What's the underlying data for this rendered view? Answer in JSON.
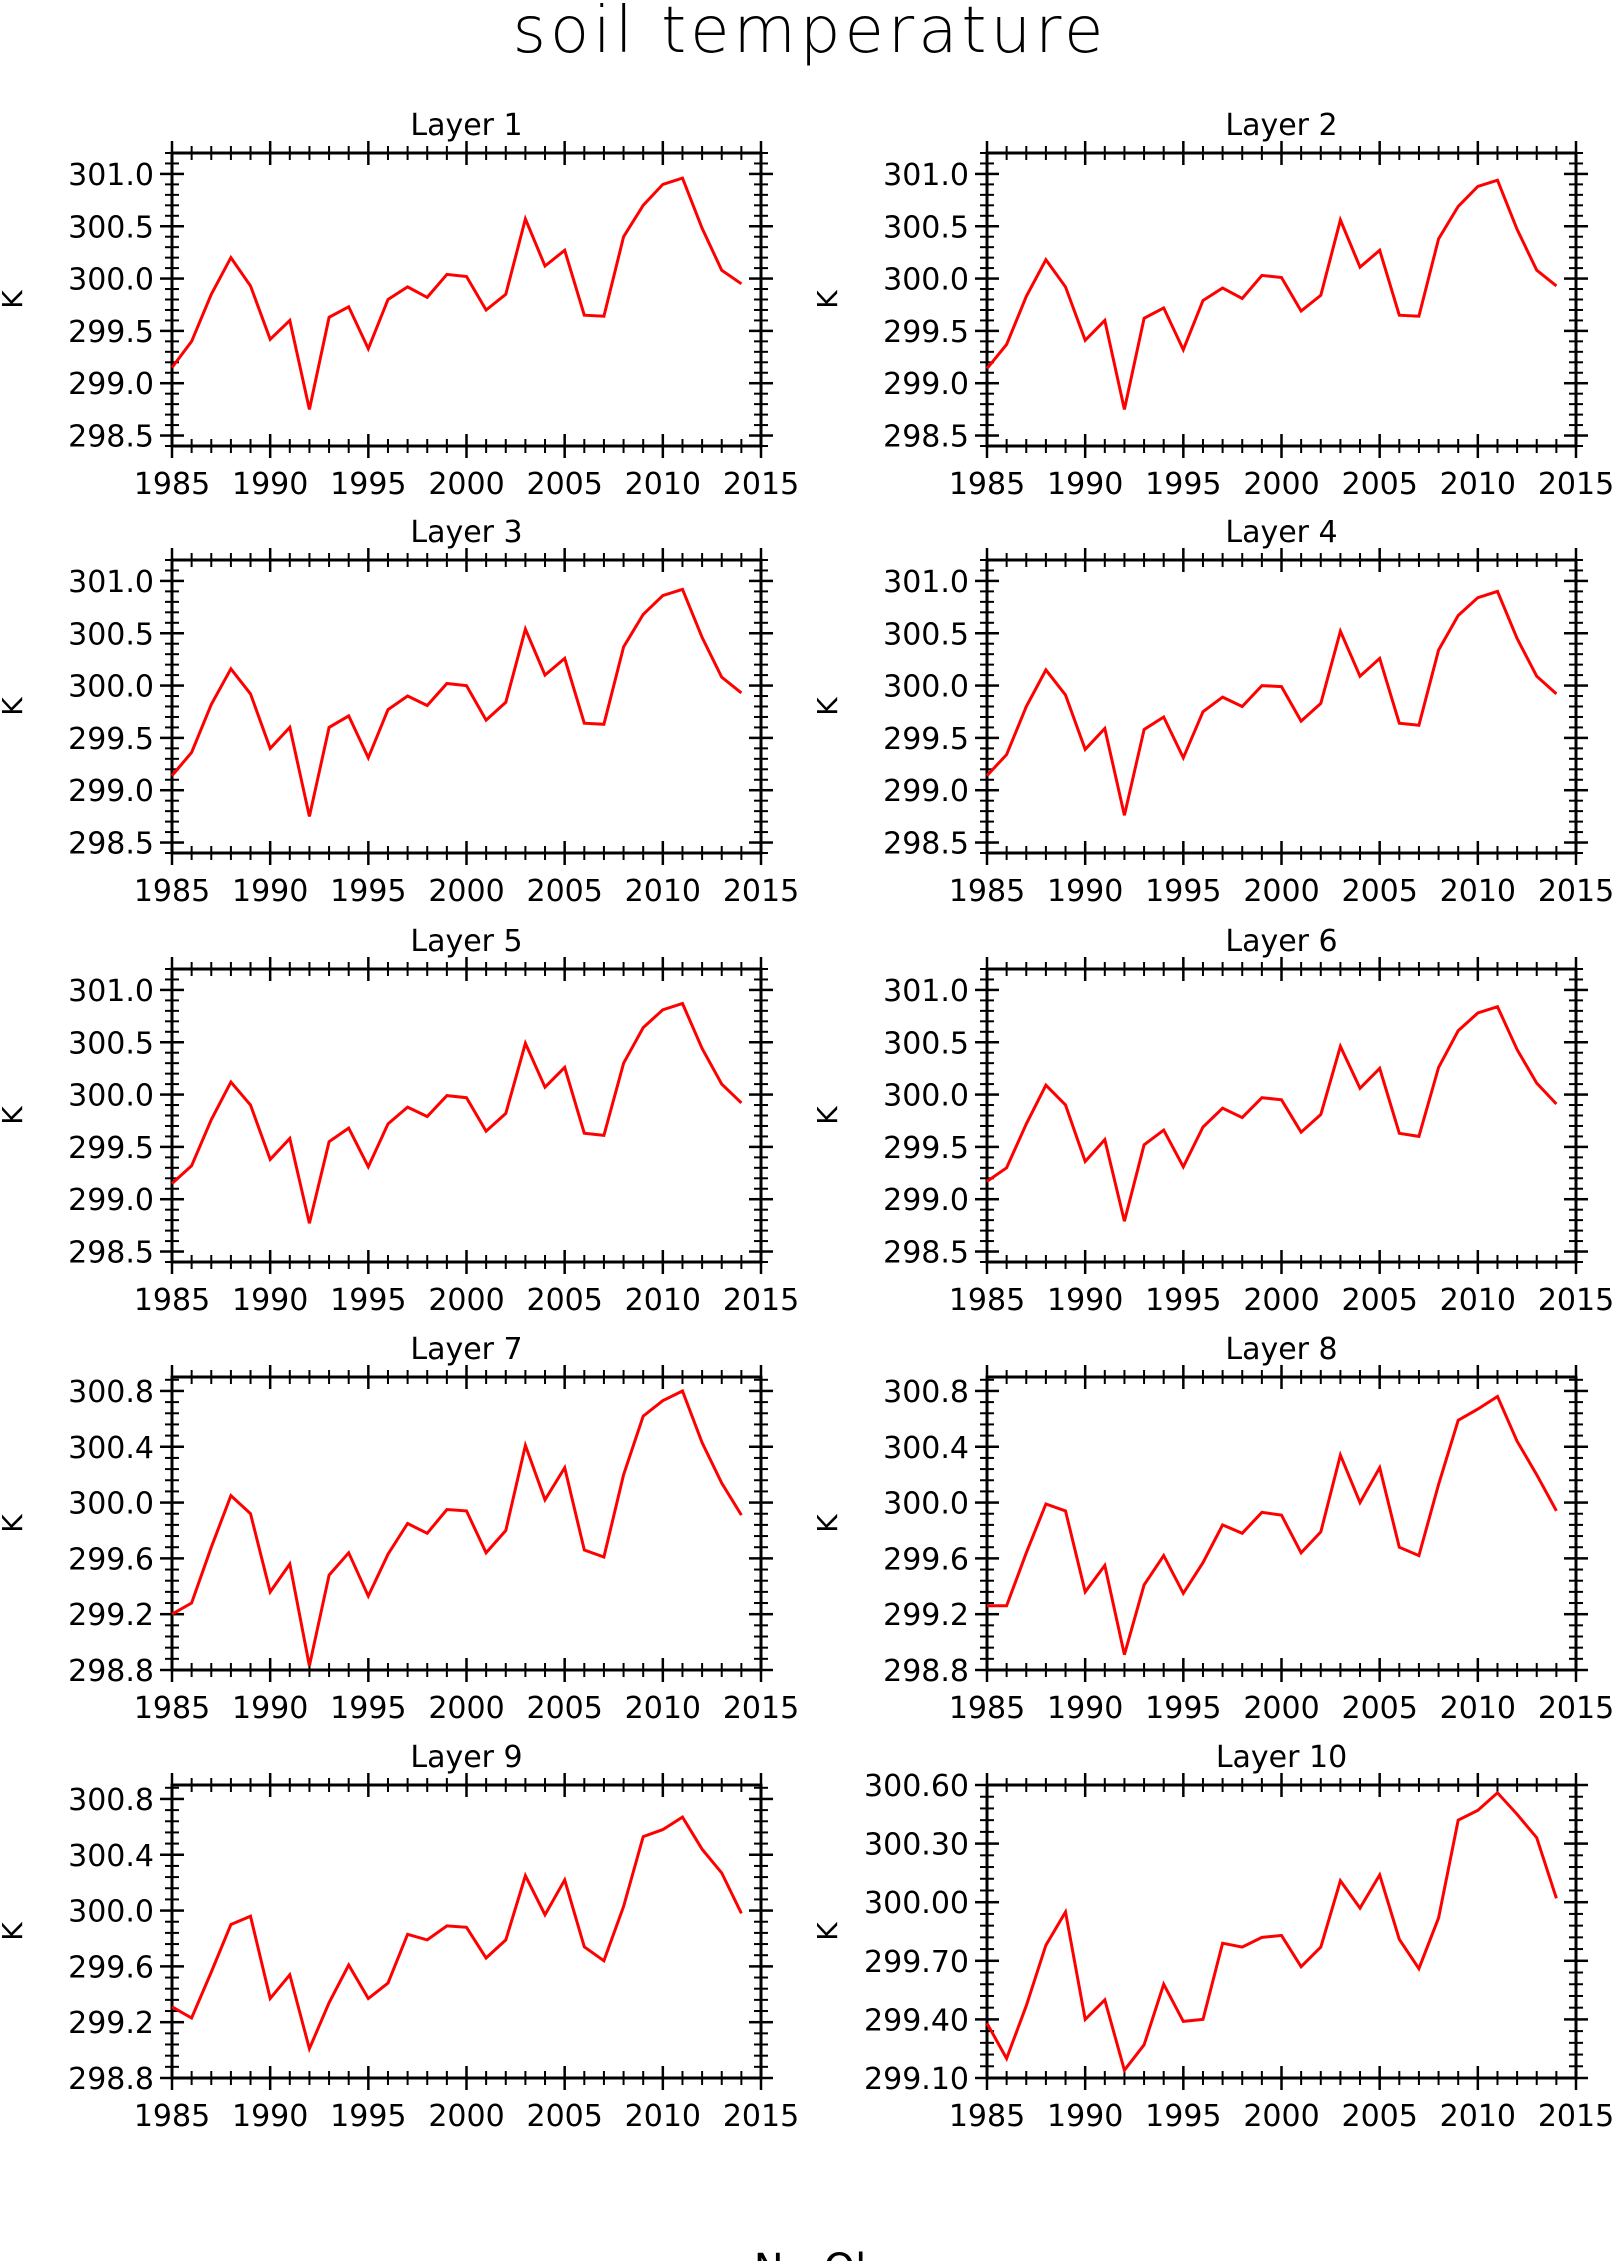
{
  "title": "soil temperature",
  "footer": "N - Ol",
  "colors": {
    "series": "#ff0000",
    "axes": "#000000"
  },
  "chart_data": [
    {
      "type": "line",
      "title": "Layer 1",
      "ylabel": "K",
      "xlim": [
        1985,
        2015
      ],
      "ylim": [
        298.4,
        301.2
      ],
      "x_ticks": [
        "1985",
        "1990",
        "1995",
        "2000",
        "2005",
        "2010",
        "2015"
      ],
      "y_ticks": [
        "298.5",
        "299.0",
        "299.5",
        "300.0",
        "300.5",
        "301.0"
      ],
      "x": [
        1985,
        1986,
        1987,
        1988,
        1989,
        1990,
        1991,
        1992,
        1993,
        1994,
        1995,
        1996,
        1997,
        1998,
        1999,
        2000,
        2001,
        2002,
        2003,
        2004,
        2005,
        2006,
        2007,
        2008,
        2009,
        2010,
        2011,
        2012,
        2013,
        2014
      ],
      "values": [
        299.15,
        299.4,
        299.85,
        300.2,
        299.93,
        299.42,
        299.6,
        298.75,
        299.63,
        299.73,
        299.33,
        299.8,
        299.92,
        299.82,
        300.04,
        300.02,
        299.7,
        299.85,
        300.57,
        300.12,
        300.27,
        299.65,
        299.64,
        300.4,
        300.7,
        300.9,
        300.96,
        300.48,
        300.08,
        299.95
      ]
    },
    {
      "type": "line",
      "title": "Layer 2",
      "ylabel": "K",
      "xlim": [
        1985,
        2015
      ],
      "ylim": [
        298.4,
        301.2
      ],
      "x_ticks": [
        "1985",
        "1990",
        "1995",
        "2000",
        "2005",
        "2010",
        "2015"
      ],
      "y_ticks": [
        "298.5",
        "299.0",
        "299.5",
        "300.0",
        "300.5",
        "301.0"
      ],
      "x": [
        1985,
        1986,
        1987,
        1988,
        1989,
        1990,
        1991,
        1992,
        1993,
        1994,
        1995,
        1996,
        1997,
        1998,
        1999,
        2000,
        2001,
        2002,
        2003,
        2004,
        2005,
        2006,
        2007,
        2008,
        2009,
        2010,
        2011,
        2012,
        2013,
        2014
      ],
      "values": [
        299.14,
        299.37,
        299.83,
        300.18,
        299.92,
        299.41,
        299.6,
        298.75,
        299.62,
        299.72,
        299.32,
        299.79,
        299.91,
        299.81,
        300.03,
        300.01,
        299.69,
        299.84,
        300.56,
        300.11,
        300.27,
        299.65,
        299.64,
        300.38,
        300.69,
        300.88,
        300.94,
        300.47,
        300.08,
        299.93
      ]
    },
    {
      "type": "line",
      "title": "Layer 3",
      "ylabel": "K",
      "xlim": [
        1985,
        2015
      ],
      "ylim": [
        298.4,
        301.2
      ],
      "x_ticks": [
        "1985",
        "1990",
        "1995",
        "2000",
        "2005",
        "2010",
        "2015"
      ],
      "y_ticks": [
        "298.5",
        "299.0",
        "299.5",
        "300.0",
        "300.5",
        "301.0"
      ],
      "x": [
        1985,
        1986,
        1987,
        1988,
        1989,
        1990,
        1991,
        1992,
        1993,
        1994,
        1995,
        1996,
        1997,
        1998,
        1999,
        2000,
        2001,
        2002,
        2003,
        2004,
        2005,
        2006,
        2007,
        2008,
        2009,
        2010,
        2011,
        2012,
        2013,
        2014
      ],
      "values": [
        299.14,
        299.36,
        299.82,
        300.16,
        299.92,
        299.4,
        299.6,
        298.75,
        299.6,
        299.71,
        299.31,
        299.77,
        299.9,
        299.81,
        300.02,
        300.0,
        299.67,
        299.84,
        300.54,
        300.1,
        300.26,
        299.64,
        299.63,
        300.37,
        300.68,
        300.86,
        300.92,
        300.46,
        300.08,
        299.93
      ]
    },
    {
      "type": "line",
      "title": "Layer 4",
      "ylabel": "K",
      "xlim": [
        1985,
        2015
      ],
      "ylim": [
        298.4,
        301.2
      ],
      "x_ticks": [
        "1985",
        "1990",
        "1995",
        "2000",
        "2005",
        "2010",
        "2015"
      ],
      "y_ticks": [
        "298.5",
        "299.0",
        "299.5",
        "300.0",
        "300.5",
        "301.0"
      ],
      "x": [
        1985,
        1986,
        1987,
        1988,
        1989,
        1990,
        1991,
        1992,
        1993,
        1994,
        1995,
        1996,
        1997,
        1998,
        1999,
        2000,
        2001,
        2002,
        2003,
        2004,
        2005,
        2006,
        2007,
        2008,
        2009,
        2010,
        2011,
        2012,
        2013,
        2014
      ],
      "values": [
        299.14,
        299.34,
        299.8,
        300.15,
        299.91,
        299.39,
        299.59,
        298.76,
        299.58,
        299.7,
        299.31,
        299.75,
        299.89,
        299.8,
        300.0,
        299.99,
        299.66,
        299.83,
        300.52,
        300.09,
        300.26,
        299.64,
        299.62,
        300.34,
        300.67,
        300.84,
        300.9,
        300.45,
        300.09,
        299.92
      ]
    },
    {
      "type": "line",
      "title": "Layer 5",
      "ylabel": "K",
      "xlim": [
        1985,
        2015
      ],
      "ylim": [
        298.4,
        301.2
      ],
      "x_ticks": [
        "1985",
        "1990",
        "1995",
        "2000",
        "2005",
        "2010",
        "2015"
      ],
      "y_ticks": [
        "298.5",
        "299.0",
        "299.5",
        "300.0",
        "300.5",
        "301.0"
      ],
      "x": [
        1985,
        1986,
        1987,
        1988,
        1989,
        1990,
        1991,
        1992,
        1993,
        1994,
        1995,
        1996,
        1997,
        1998,
        1999,
        2000,
        2001,
        2002,
        2003,
        2004,
        2005,
        2006,
        2007,
        2008,
        2009,
        2010,
        2011,
        2012,
        2013,
        2014
      ],
      "values": [
        299.15,
        299.32,
        299.76,
        300.12,
        299.9,
        299.38,
        299.58,
        298.77,
        299.55,
        299.68,
        299.31,
        299.72,
        299.88,
        299.79,
        299.99,
        299.97,
        299.65,
        299.82,
        300.49,
        300.07,
        300.26,
        299.63,
        299.61,
        300.3,
        300.64,
        300.81,
        300.87,
        300.44,
        300.1,
        299.92
      ]
    },
    {
      "type": "line",
      "title": "Layer 6",
      "ylabel": "K",
      "xlim": [
        1985,
        2015
      ],
      "ylim": [
        298.4,
        301.2
      ],
      "x_ticks": [
        "1985",
        "1990",
        "1995",
        "2000",
        "2005",
        "2010",
        "2015"
      ],
      "y_ticks": [
        "298.5",
        "299.0",
        "299.5",
        "300.0",
        "300.5",
        "301.0"
      ],
      "x": [
        1985,
        1986,
        1987,
        1988,
        1989,
        1990,
        1991,
        1992,
        1993,
        1994,
        1995,
        1996,
        1997,
        1998,
        1999,
        2000,
        2001,
        2002,
        2003,
        2004,
        2005,
        2006,
        2007,
        2008,
        2009,
        2010,
        2011,
        2012,
        2013,
        2014
      ],
      "values": [
        299.17,
        299.3,
        299.72,
        300.09,
        299.9,
        299.36,
        299.57,
        298.79,
        299.52,
        299.66,
        299.31,
        299.69,
        299.87,
        299.78,
        299.97,
        299.95,
        299.64,
        299.81,
        300.46,
        300.06,
        300.25,
        299.63,
        299.6,
        300.26,
        300.61,
        300.78,
        300.84,
        300.43,
        300.11,
        299.91
      ]
    },
    {
      "type": "line",
      "title": "Layer 7",
      "ylabel": "K",
      "xlim": [
        1985,
        2015
      ],
      "ylim": [
        298.8,
        300.9
      ],
      "x_ticks": [
        "1985",
        "1990",
        "1995",
        "2000",
        "2005",
        "2010",
        "2015"
      ],
      "y_ticks": [
        "298.8",
        "299.2",
        "299.6",
        "300.0",
        "300.4",
        "300.8"
      ],
      "x": [
        1985,
        1986,
        1987,
        1988,
        1989,
        1990,
        1991,
        1992,
        1993,
        1994,
        1995,
        1996,
        1997,
        1998,
        1999,
        2000,
        2001,
        2002,
        2003,
        2004,
        2005,
        2006,
        2007,
        2008,
        2009,
        2010,
        2011,
        2012,
        2013,
        2014
      ],
      "values": [
        299.2,
        299.28,
        299.68,
        300.05,
        299.92,
        299.36,
        299.56,
        298.83,
        299.48,
        299.64,
        299.33,
        299.63,
        299.85,
        299.78,
        299.95,
        299.94,
        299.64,
        299.8,
        300.41,
        300.02,
        300.25,
        299.66,
        299.61,
        300.2,
        300.62,
        300.73,
        300.8,
        300.43,
        300.14,
        299.91
      ]
    },
    {
      "type": "line",
      "title": "Layer 8",
      "ylabel": "K",
      "xlim": [
        1985,
        2015
      ],
      "ylim": [
        298.8,
        300.9
      ],
      "x_ticks": [
        "1985",
        "1990",
        "1995",
        "2000",
        "2005",
        "2010",
        "2015"
      ],
      "y_ticks": [
        "298.8",
        "299.2",
        "299.6",
        "300.0",
        "300.4",
        "300.8"
      ],
      "x": [
        1985,
        1986,
        1987,
        1988,
        1989,
        1990,
        1991,
        1992,
        1993,
        1994,
        1995,
        1996,
        1997,
        1998,
        1999,
        2000,
        2001,
        2002,
        2003,
        2004,
        2005,
        2006,
        2007,
        2008,
        2009,
        2010,
        2011,
        2012,
        2013,
        2014
      ],
      "values": [
        299.26,
        299.26,
        299.64,
        299.99,
        299.94,
        299.36,
        299.55,
        298.91,
        299.41,
        299.62,
        299.35,
        299.57,
        299.84,
        299.78,
        299.93,
        299.91,
        299.64,
        299.79,
        300.34,
        300.0,
        300.25,
        299.68,
        299.62,
        300.13,
        300.59,
        300.67,
        300.76,
        300.44,
        300.2,
        299.94
      ]
    },
    {
      "type": "line",
      "title": "Layer 9",
      "ylabel": "K",
      "xlim": [
        1985,
        2015
      ],
      "ylim": [
        298.8,
        300.9
      ],
      "x_ticks": [
        "1985",
        "1990",
        "1995",
        "2000",
        "2005",
        "2010",
        "2015"
      ],
      "y_ticks": [
        "298.8",
        "299.2",
        "299.6",
        "300.0",
        "300.4",
        "300.8"
      ],
      "x": [
        1985,
        1986,
        1987,
        1988,
        1989,
        1990,
        1991,
        1992,
        1993,
        1994,
        1995,
        1996,
        1997,
        1998,
        1999,
        2000,
        2001,
        2002,
        2003,
        2004,
        2005,
        2006,
        2007,
        2008,
        2009,
        2010,
        2011,
        2012,
        2013,
        2014
      ],
      "values": [
        299.31,
        299.23,
        299.56,
        299.9,
        299.96,
        299.37,
        299.54,
        299.01,
        299.34,
        299.61,
        299.37,
        299.48,
        299.83,
        299.79,
        299.89,
        299.88,
        299.66,
        299.79,
        300.25,
        299.97,
        300.22,
        299.74,
        299.64,
        300.03,
        300.53,
        300.58,
        300.67,
        300.44,
        300.27,
        299.98
      ]
    },
    {
      "type": "line",
      "title": "Layer 10",
      "ylabel": "K",
      "xlim": [
        1985,
        2015
      ],
      "ylim": [
        299.1,
        300.6
      ],
      "x_ticks": [
        "1985",
        "1990",
        "1995",
        "2000",
        "2005",
        "2010",
        "2015"
      ],
      "y_ticks": [
        "299.10",
        "299.40",
        "299.70",
        "300.00",
        "300.30",
        "300.60"
      ],
      "x": [
        1985,
        1986,
        1987,
        1988,
        1989,
        1990,
        1991,
        1992,
        1993,
        1994,
        1995,
        1996,
        1997,
        1998,
        1999,
        2000,
        2001,
        2002,
        2003,
        2004,
        2005,
        2006,
        2007,
        2008,
        2009,
        2010,
        2011,
        2012,
        2013,
        2014
      ],
      "values": [
        299.38,
        299.2,
        299.47,
        299.78,
        299.95,
        299.4,
        299.5,
        299.14,
        299.27,
        299.58,
        299.39,
        299.4,
        299.79,
        299.77,
        299.82,
        299.83,
        299.67,
        299.77,
        300.11,
        299.97,
        300.14,
        299.81,
        299.66,
        299.92,
        300.42,
        300.47,
        300.56,
        300.45,
        300.33,
        300.02
      ]
    }
  ]
}
